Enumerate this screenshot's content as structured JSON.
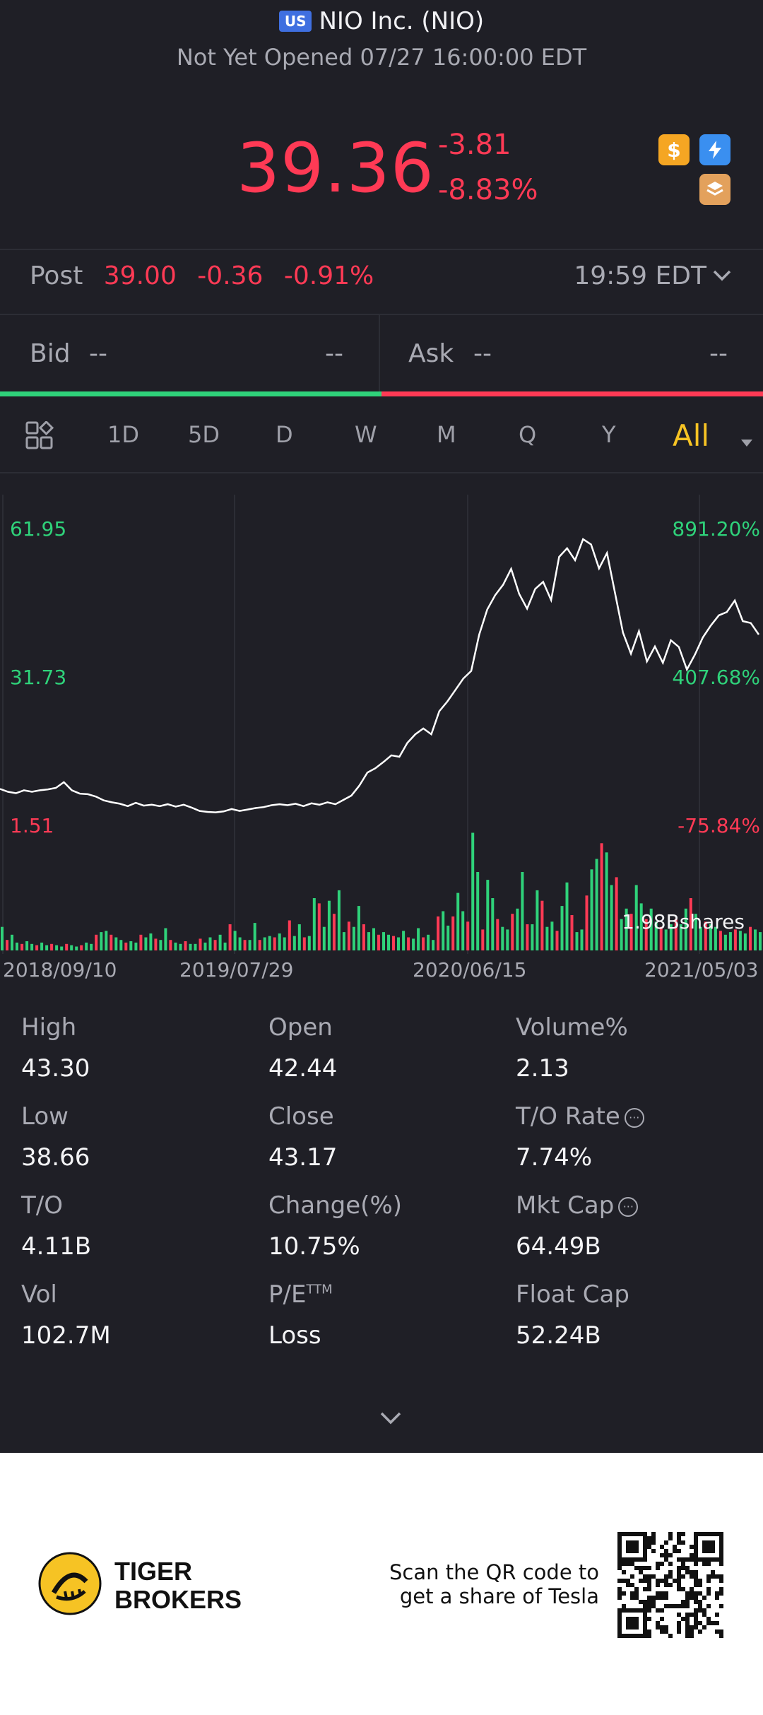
{
  "header": {
    "market_badge": "US",
    "title": "NIO Inc. (NIO)",
    "status": "Not Yet Opened 07/27 16:00:00 EDT",
    "price": "39.36",
    "change": "-3.81",
    "change_pct": "-8.83%",
    "icons": [
      "dollar-icon",
      "flash-icon",
      "stack-icon"
    ]
  },
  "post": {
    "label": "Post",
    "price": "39.00",
    "change": "-0.36",
    "change_pct": "-0.91%",
    "time": "19:59 EDT"
  },
  "bidask": {
    "bid_label": "Bid",
    "bid_price": "--",
    "bid_size": "--",
    "ask_label": "Ask",
    "ask_price": "--",
    "ask_size": "--"
  },
  "tabs": [
    "1D",
    "5D",
    "D",
    "W",
    "M",
    "Q",
    "Y",
    "All"
  ],
  "active_tab": "All",
  "chart_data": {
    "type": "line",
    "y_left_labels": [
      "61.95",
      "31.73",
      "1.51"
    ],
    "y_right_labels": [
      "891.20%",
      "407.68%",
      "-75.84%"
    ],
    "x_labels": [
      "2018/09/10",
      "2019/07/29",
      "2020/06/15",
      "2021/05/03"
    ],
    "volume_label": "1.98Bshares",
    "price_series": [
      7.2,
      6.6,
      6.3,
      6.9,
      6.6,
      6.9,
      7.1,
      7.4,
      8.6,
      6.9,
      6.2,
      6.1,
      5.6,
      4.8,
      4.4,
      4.1,
      3.6,
      4.3,
      3.7,
      3.9,
      3.6,
      4.0,
      3.5,
      3.9,
      3.3,
      2.6,
      2.4,
      2.3,
      2.5,
      3.0,
      2.6,
      2.9,
      3.2,
      3.4,
      3.8,
      4.0,
      3.8,
      4.1,
      3.6,
      4.2,
      3.9,
      4.4,
      4.0,
      4.9,
      5.8,
      7.9,
      10.6,
      11.5,
      12.8,
      14.2,
      13.9,
      16.8,
      18.6,
      19.8,
      18.6,
      23.4,
      25.4,
      27.8,
      30.2,
      31.8,
      39.4,
      44.6,
      47.6,
      49.8,
      53.1,
      47.9,
      44.8,
      48.9,
      50.4,
      46.6,
      55.6,
      57.4,
      54.9,
      59.3,
      58.2,
      53.2,
      56.4,
      48.1,
      39.8,
      35.4,
      40.1,
      33.8,
      36.9,
      33.5,
      38.2,
      36.8,
      32.1,
      35.2,
      38.8,
      41.3,
      43.4,
      44.1,
      46.5,
      42.2,
      41.8,
      39.4
    ],
    "ylim": [
      1.51,
      61.95
    ],
    "volume_colors_note": "green up / red down",
    "volume_series": [
      0.18,
      0.08,
      0.12,
      0.06,
      0.05,
      0.07,
      0.05,
      0.04,
      0.06,
      0.04,
      0.05,
      0.04,
      0.03,
      0.05,
      0.04,
      0.03,
      0.04,
      0.06,
      0.05,
      0.12,
      0.14,
      0.15,
      0.12,
      0.1,
      0.08,
      0.06,
      0.07,
      0.06,
      0.12,
      0.1,
      0.13,
      0.09,
      0.08,
      0.17,
      0.08,
      0.06,
      0.05,
      0.07,
      0.05,
      0.05,
      0.09,
      0.06,
      0.1,
      0.08,
      0.12,
      0.06,
      0.2,
      0.15,
      0.1,
      0.08,
      0.08,
      0.21,
      0.08,
      0.1,
      0.11,
      0.1,
      0.13,
      0.1,
      0.23,
      0.11,
      0.2,
      0.1,
      0.11,
      0.4,
      0.36,
      0.18,
      0.38,
      0.28,
      0.46,
      0.14,
      0.22,
      0.18,
      0.34,
      0.2,
      0.14,
      0.17,
      0.12,
      0.14,
      0.12,
      0.11,
      0.1,
      0.15,
      0.1,
      0.09,
      0.17,
      0.1,
      0.12,
      0.08,
      0.26,
      0.3,
      0.19,
      0.26,
      0.44,
      0.3,
      0.22,
      0.9,
      0.6,
      0.16,
      0.54,
      0.4,
      0.24,
      0.18,
      0.16,
      0.28,
      0.32,
      0.6,
      0.2,
      0.2,
      0.46,
      0.38,
      0.18,
      0.22,
      0.15,
      0.34,
      0.52,
      0.27,
      0.14,
      0.16,
      0.42,
      0.62,
      0.7,
      0.82,
      0.75,
      0.5,
      0.56,
      0.24,
      0.32,
      0.28,
      0.5,
      0.36,
      0.24,
      0.32,
      0.22,
      0.18,
      0.16,
      0.2,
      0.24,
      0.2,
      0.32,
      0.4,
      0.28,
      0.18,
      0.22,
      0.2,
      0.18,
      0.15,
      0.12,
      0.14,
      0.16,
      0.15,
      0.13,
      0.18,
      0.16,
      0.14
    ]
  },
  "stats": [
    {
      "label": "High",
      "value": "43.30"
    },
    {
      "label": "Open",
      "value": "42.44"
    },
    {
      "label": "Volume%",
      "value": "2.13"
    },
    {
      "label": "Low",
      "value": "38.66"
    },
    {
      "label": "Close",
      "value": "43.17"
    },
    {
      "label": "T/O Rate",
      "value": "7.74%"
    },
    {
      "label": "T/O",
      "value": "4.11B"
    },
    {
      "label": "Change(%)",
      "value": "10.75%"
    },
    {
      "label": "Mkt Cap",
      "value": "64.49B"
    },
    {
      "label": "Vol",
      "value": "102.7M"
    },
    {
      "label": "P/E",
      "sup": "TTM",
      "value": "Loss"
    },
    {
      "label": "Float Cap",
      "value": "52.24B"
    }
  ],
  "footer": {
    "brand_line1": "TIGER",
    "brand_line2": "BROKERS",
    "promo_line1": "Scan the QR code to",
    "promo_line2": "get a share of Tesla"
  }
}
